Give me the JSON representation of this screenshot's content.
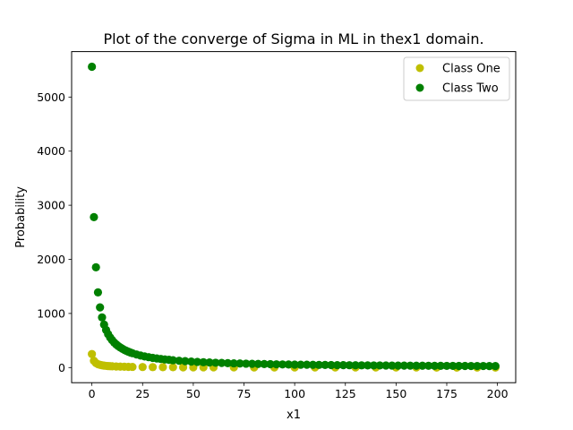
{
  "chart_data": {
    "type": "scatter",
    "title": "Plot of the converge of Sigma in ML in thex1 domain.",
    "xlabel": "x1",
    "ylabel": "Probability",
    "xlim": [
      -10,
      209
    ],
    "ylim": [
      -280,
      5840
    ],
    "xticks": [
      0,
      25,
      50,
      75,
      100,
      125,
      150,
      175,
      200
    ],
    "yticks": [
      0,
      1000,
      2000,
      3000,
      4000,
      5000
    ],
    "grid": false,
    "legend_position": "top-right",
    "series": [
      {
        "name": "Class One",
        "color": "#bfbf00",
        "x": [
          0,
          1,
          2,
          3,
          4,
          5,
          6,
          7,
          8,
          9,
          10,
          12,
          14,
          16,
          18,
          20,
          25,
          30,
          35,
          40,
          45,
          50,
          55,
          60,
          70,
          80,
          90,
          100,
          110,
          120,
          130,
          140,
          150,
          160,
          170,
          180,
          190,
          199
        ],
        "y": [
          250,
          125,
          83,
          62,
          50,
          42,
          36,
          31,
          28,
          25,
          23,
          19,
          17,
          15,
          13,
          12,
          10,
          8,
          7,
          6,
          5,
          5,
          4,
          4,
          4,
          3,
          3,
          2,
          2,
          2,
          2,
          2,
          2,
          2,
          1,
          1,
          1,
          1
        ]
      },
      {
        "name": "Class Two",
        "color": "#008000",
        "x": [
          0,
          1,
          2,
          3,
          4,
          5,
          6,
          7,
          8,
          9,
          10,
          11,
          12,
          13,
          14,
          15,
          16,
          17,
          18,
          19,
          20,
          22,
          24,
          26,
          28,
          30,
          32,
          34,
          36,
          38,
          40,
          43,
          46,
          49,
          52,
          55,
          58,
          61,
          64,
          67,
          70,
          73,
          76,
          79,
          82,
          85,
          88,
          91,
          94,
          97,
          100,
          103,
          106,
          109,
          112,
          115,
          118,
          121,
          124,
          127,
          130,
          133,
          136,
          139,
          142,
          145,
          148,
          151,
          154,
          157,
          160,
          163,
          166,
          169,
          172,
          175,
          178,
          181,
          184,
          187,
          190,
          193,
          196,
          199
        ],
        "y": [
          5560,
          2780,
          1853,
          1390,
          1112,
          927,
          794,
          695,
          618,
          556,
          505,
          463,
          428,
          397,
          371,
          348,
          327,
          309,
          293,
          278,
          265,
          242,
          222,
          206,
          192,
          179,
          168,
          159,
          150,
          143,
          136,
          126,
          118,
          111,
          104,
          99,
          94,
          89,
          85,
          81,
          78,
          75,
          72,
          69,
          67,
          65,
          63,
          60,
          58,
          56,
          55,
          53,
          52,
          50,
          49,
          48,
          46,
          45,
          44,
          43,
          42,
          41,
          40,
          39,
          39,
          38,
          37,
          36,
          36,
          35,
          34,
          34,
          33,
          32,
          32,
          31,
          31,
          30,
          30,
          29,
          29,
          29,
          28,
          28
        ]
      }
    ]
  }
}
